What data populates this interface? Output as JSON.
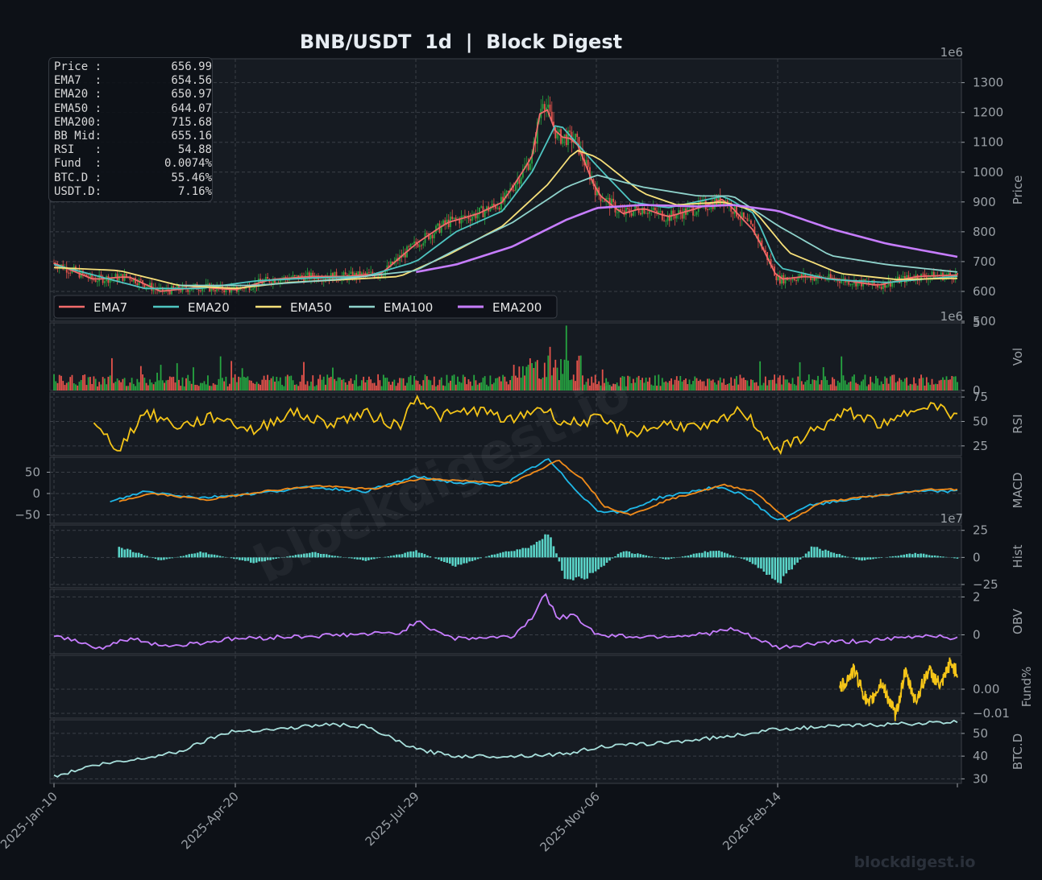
{
  "title": "BNB/USDT  1d  |  Block Digest",
  "watermark": "blockdigest.io",
  "footer_brand": "blockdigest.io",
  "colors": {
    "background": "#0d1117",
    "panel": "#161b22",
    "grid": "#3a3f47",
    "axis_text": "#9aa0a6",
    "candle_up": "#26a641",
    "candle_down": "#e5534b",
    "ema7": "#f26b6b",
    "ema20": "#4ec5c1",
    "ema50": "#f7e07a",
    "ema100": "#8fd3cc",
    "ema200": "#c77dff",
    "rsi": "#f5c518",
    "macd": "#1fb8e8",
    "signal": "#f28c1a",
    "hist": "#5ad4c8",
    "obv": "#c77dff",
    "funding": "#f5c518",
    "btcd": "#a8e0dc"
  },
  "info_box": [
    {
      "label": "Price :",
      "value": "656.99"
    },
    {
      "label": "EMA7  :",
      "value": "654.56"
    },
    {
      "label": "EMA20 :",
      "value": "650.97"
    },
    {
      "label": "EMA50 :",
      "value": "644.07"
    },
    {
      "label": "EMA200:",
      "value": "715.68"
    },
    {
      "label": "BB Mid:",
      "value": "655.16"
    },
    {
      "label": "RSI   :",
      "value": "54.88"
    },
    {
      "label": "Fund  :",
      "value": "0.0074%"
    },
    {
      "label": "BTC.D :",
      "value": "55.46%"
    },
    {
      "label": "USDT.D:",
      "value": "7.16%"
    }
  ],
  "legend": [
    "EMA7",
    "EMA20",
    "EMA50",
    "EMA100",
    "EMA200"
  ],
  "chart_data": {
    "type": "line",
    "x_ticks": [
      "2025-Jan-10",
      "2025-Apr-20",
      "2025-Jul-29",
      "2025-Nov-06",
      "2026-Feb-14"
    ],
    "x_range": [
      "2025-01-10",
      "2026-05-24"
    ],
    "panels": [
      {
        "name": "Price",
        "ylabel": "Price",
        "ylim": [
          500,
          1380
        ],
        "yticks": [
          500,
          600,
          700,
          800,
          900,
          1000,
          1100,
          1200,
          1300
        ],
        "offset_label": "1e6",
        "series": [
          {
            "name": "EMA7",
            "dates": [
              "2025-01-10",
              "2025-02-01",
              "2025-02-20",
              "2025-03-10",
              "2025-04-01",
              "2025-04-20",
              "2025-05-10",
              "2025-06-01",
              "2025-06-20",
              "2025-07-10",
              "2025-07-29",
              "2025-08-15",
              "2025-09-01",
              "2025-09-15",
              "2025-10-01",
              "2025-10-07",
              "2025-10-15",
              "2025-10-25",
              "2025-11-06",
              "2025-11-20",
              "2025-12-01",
              "2025-12-15",
              "2026-01-01",
              "2026-01-15",
              "2026-02-01",
              "2026-02-14",
              "2026-03-01",
              "2026-03-20",
              "2026-04-10",
              "2026-05-01",
              "2026-05-24"
            ],
            "values": [
              695,
              640,
              650,
              600,
              615,
              605,
              640,
              650,
              650,
              660,
              760,
              830,
              860,
              900,
              1050,
              1250,
              1120,
              1110,
              930,
              860,
              880,
              850,
              880,
              910,
              800,
              640,
              650,
              640,
              620,
              650,
              655
            ]
          },
          {
            "name": "EMA20",
            "dates": [
              "2025-01-10",
              "2025-02-01",
              "2025-03-01",
              "2025-04-01",
              "2025-05-01",
              "2025-06-01",
              "2025-07-01",
              "2025-07-29",
              "2025-08-20",
              "2025-09-15",
              "2025-10-01",
              "2025-10-15",
              "2025-11-06",
              "2025-11-25",
              "2025-12-15",
              "2026-01-15",
              "2026-02-01",
              "2026-02-14",
              "2026-03-15",
              "2026-04-15",
              "2026-05-24"
            ],
            "values": [
              690,
              655,
              610,
              610,
              635,
              645,
              650,
              700,
              800,
              870,
              1000,
              1170,
              1020,
              900,
              880,
              920,
              860,
              680,
              640,
              630,
              651
            ]
          },
          {
            "name": "EMA50",
            "dates": [
              "2025-01-10",
              "2025-02-15",
              "2025-03-20",
              "2025-04-20",
              "2025-05-20",
              "2025-06-20",
              "2025-07-20",
              "2025-08-15",
              "2025-09-15",
              "2025-10-10",
              "2025-10-25",
              "2025-11-06",
              "2025-12-01",
              "2025-12-20",
              "2026-01-15",
              "2026-02-01",
              "2026-02-20",
              "2026-03-20",
              "2026-04-20",
              "2026-05-24"
            ],
            "values": [
              680,
              670,
              620,
              610,
              630,
              640,
              650,
              720,
              820,
              960,
              1075,
              1050,
              930,
              890,
              900,
              870,
              730,
              660,
              640,
              644
            ]
          },
          {
            "name": "EMA100",
            "dates": [
              "2025-03-20",
              "2025-05-01",
              "2025-06-15",
              "2025-07-29",
              "2025-08-20",
              "2025-09-20",
              "2025-10-20",
              "2025-11-06",
              "2025-12-01",
              "2026-01-01",
              "2026-01-20",
              "2026-02-14",
              "2026-03-15",
              "2026-04-15",
              "2026-05-24"
            ],
            "values": [
              620,
              620,
              640,
              670,
              740,
              830,
              950,
              990,
              950,
              920,
              920,
              820,
              720,
              690,
              665
            ]
          },
          {
            "name": "EMA200",
            "dates": [
              "2025-07-29",
              "2025-08-20",
              "2025-09-20",
              "2025-10-20",
              "2025-11-06",
              "2025-12-01",
              "2026-01-01",
              "2026-01-20",
              "2026-02-14",
              "2026-03-15",
              "2026-04-15",
              "2026-05-24"
            ],
            "values": [
              665,
              690,
              750,
              840,
              880,
              890,
              885,
              890,
              870,
              810,
              760,
              716
            ]
          }
        ]
      },
      {
        "name": "Vol",
        "ylabel": "Vol",
        "ylim": [
          0,
          5
        ],
        "yticks": [
          0,
          5
        ],
        "offset_label": "1e6",
        "series": []
      },
      {
        "name": "RSI",
        "ylabel": "RSI",
        "ylim": [
          15,
          80
        ],
        "yticks": [
          25,
          50,
          75
        ],
        "series": [
          {
            "name": "RSI",
            "dates": [
              "2025-02-01",
              "2025-02-15",
              "2025-03-01",
              "2025-03-20",
              "2025-04-10",
              "2025-05-01",
              "2025-05-20",
              "2025-06-10",
              "2025-07-01",
              "2025-07-20",
              "2025-07-29",
              "2025-08-10",
              "2025-09-01",
              "2025-09-20",
              "2025-10-05",
              "2025-10-20",
              "2025-11-06",
              "2025-11-25",
              "2025-12-15",
              "2026-01-05",
              "2026-01-25",
              "2026-02-14",
              "2026-03-05",
              "2026-03-25",
              "2026-04-15",
              "2026-05-05",
              "2026-05-24"
            ],
            "values": [
              45,
              22,
              60,
              45,
              55,
              40,
              60,
              48,
              58,
              45,
              78,
              55,
              62,
              50,
              65,
              48,
              52,
              38,
              48,
              42,
              62,
              20,
              40,
              60,
              45,
              70,
              55
            ]
          }
        ]
      },
      {
        "name": "MACD",
        "ylabel": "MACD",
        "ylim": [
          -70,
          85
        ],
        "yticks": [
          -50,
          0,
          50
        ],
        "left_axis": true,
        "series": [
          {
            "name": "MACD",
            "dates": [
              "2025-02-10",
              "2025-03-01",
              "2025-04-01",
              "2025-05-01",
              "2025-06-01",
              "2025-07-01",
              "2025-07-29",
              "2025-08-20",
              "2025-09-15",
              "2025-10-01",
              "2025-10-10",
              "2025-10-25",
              "2025-11-06",
              "2025-11-20",
              "2025-12-10",
              "2026-01-10",
              "2026-01-25",
              "2026-02-14",
              "2026-03-01",
              "2026-04-01",
              "2026-05-01",
              "2026-05-24"
            ],
            "values": [
              -20,
              5,
              -10,
              0,
              15,
              5,
              40,
              25,
              20,
              60,
              80,
              10,
              -40,
              -45,
              -10,
              15,
              0,
              -65,
              -30,
              -10,
              5,
              5
            ]
          },
          {
            "name": "Signal",
            "dates": [
              "2025-02-15",
              "2025-03-05",
              "2025-04-05",
              "2025-05-05",
              "2025-06-05",
              "2025-07-05",
              "2025-08-01",
              "2025-08-25",
              "2025-09-20",
              "2025-10-05",
              "2025-10-15",
              "2025-10-30",
              "2025-11-10",
              "2025-11-25",
              "2025-12-15",
              "2026-01-15",
              "2026-02-01",
              "2026-02-20",
              "2026-03-10",
              "2026-04-10",
              "2026-05-10",
              "2026-05-24"
            ],
            "values": [
              -18,
              0,
              -15,
              5,
              18,
              10,
              35,
              30,
              25,
              55,
              80,
              30,
              -30,
              -50,
              -15,
              20,
              5,
              -65,
              -20,
              -5,
              10,
              10
            ]
          }
        ]
      },
      {
        "name": "Hist",
        "ylabel": "Hist",
        "ylim": [
          -28,
          30
        ],
        "yticks": [
          -25,
          0,
          25
        ],
        "offset_label": "1e7",
        "series": [
          {
            "name": "Hist",
            "dates": [
              "2025-02-15",
              "2025-03-10",
              "2025-04-01",
              "2025-05-01",
              "2025-06-01",
              "2025-07-01",
              "2025-07-29",
              "2025-08-20",
              "2025-09-10",
              "2025-10-01",
              "2025-10-10",
              "2025-10-20",
              "2025-11-01",
              "2025-11-20",
              "2025-12-15",
              "2026-01-10",
              "2026-01-30",
              "2026-02-14",
              "2026-03-05",
              "2026-04-01",
              "2026-05-01",
              "2026-05-24"
            ],
            "values": [
              10,
              -3,
              5,
              -5,
              5,
              -3,
              6,
              -8,
              3,
              10,
              25,
              -22,
              -18,
              6,
              -2,
              7,
              -4,
              -24,
              10,
              -3,
              4,
              -1
            ]
          }
        ]
      },
      {
        "name": "OBV",
        "ylabel": "OBV",
        "ylim": [
          -1,
          2.4
        ],
        "yticks": [
          0,
          2
        ],
        "series": [
          {
            "name": "OBV",
            "dates": [
              "2025-01-10",
              "2025-02-05",
              "2025-02-20",
              "2025-03-15",
              "2025-04-20",
              "2025-05-20",
              "2025-06-20",
              "2025-07-20",
              "2025-07-29",
              "2025-08-20",
              "2025-09-20",
              "2025-10-01",
              "2025-10-08",
              "2025-10-15",
              "2025-10-25",
              "2025-11-06",
              "2025-12-01",
              "2026-01-01",
              "2026-01-20",
              "2026-02-14",
              "2026-03-10",
              "2026-04-10",
              "2026-05-10",
              "2026-05-24"
            ],
            "values": [
              0,
              -0.7,
              -0.2,
              -0.6,
              -0.2,
              -0.1,
              0,
              0.1,
              0.7,
              -0.2,
              -0.1,
              0.9,
              2.2,
              0.9,
              1.0,
              0,
              -0.1,
              0,
              0.3,
              -0.7,
              -0.4,
              -0.3,
              0,
              -0.2
            ]
          }
        ]
      },
      {
        "name": "Fund%",
        "ylabel": "Fund%",
        "ylim": [
          -0.012,
          0.014
        ],
        "yticks": [
          -0.01,
          0.0
        ],
        "series": [
          {
            "name": "Fund%",
            "dates": [
              "2026-03-20",
              "2026-03-28",
              "2026-04-05",
              "2026-04-12",
              "2026-04-20",
              "2026-04-25",
              "2026-05-01",
              "2026-05-08",
              "2026-05-15",
              "2026-05-20",
              "2026-05-24"
            ],
            "values": [
              0,
              0.008,
              -0.007,
              0.003,
              -0.011,
              0.007,
              -0.005,
              0.008,
              0.001,
              0.011,
              0.007
            ]
          }
        ]
      },
      {
        "name": "BTC.D",
        "ylabel": "BTC.D",
        "ylim": [
          28,
          56
        ],
        "yticks": [
          30,
          40,
          50
        ],
        "series": [
          {
            "name": "BTC.D",
            "dates": [
              "2025-01-10",
              "2025-02-01",
              "2025-02-20",
              "2025-03-20",
              "2025-04-10",
              "2025-04-20",
              "2025-05-15",
              "2025-06-10",
              "2025-07-01",
              "2025-07-29",
              "2025-08-20",
              "2025-09-20",
              "2025-10-20",
              "2025-11-06",
              "2025-12-15",
              "2026-01-20",
              "2026-02-14",
              "2026-03-15",
              "2026-04-15",
              "2026-05-24"
            ],
            "values": [
              31,
              36,
              38,
              42,
              49,
              51,
              52,
              54,
              53,
              43,
              40,
              40,
              41,
              44,
              46,
              49,
              52,
              53,
              54,
              55
            ]
          }
        ]
      }
    ]
  }
}
